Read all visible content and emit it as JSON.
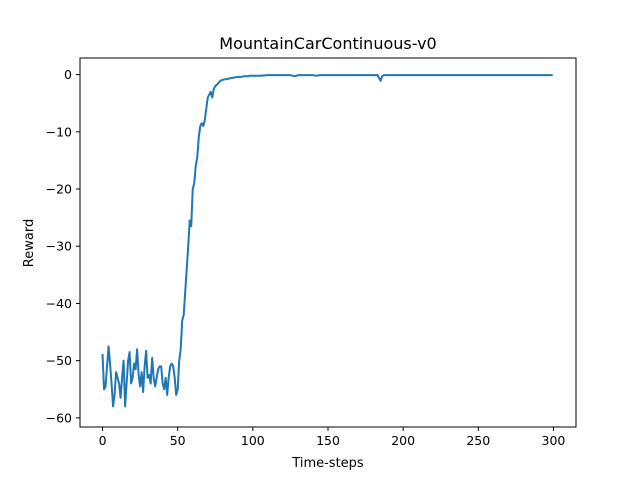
{
  "chart_data": {
    "type": "line",
    "title": "MountainCarContinuous-v0",
    "xlabel": "Time-steps",
    "ylabel": "Reward",
    "xlim": [
      -15,
      315
    ],
    "ylim": [
      -61.6,
      2.9
    ],
    "xticks": [
      0,
      50,
      100,
      150,
      200,
      250,
      300
    ],
    "yticks": [
      0,
      -10,
      -20,
      -30,
      -40,
      -50,
      -60
    ],
    "grid": false,
    "legend": "none",
    "series": [
      {
        "color": "#1f77b4",
        "x": [
          0,
          1,
          2,
          3,
          4,
          5,
          6,
          7,
          8,
          9,
          10,
          11,
          12,
          13,
          14,
          15,
          16,
          17,
          18,
          19,
          20,
          21,
          22,
          23,
          24,
          25,
          26,
          27,
          28,
          29,
          30,
          31,
          32,
          33,
          34,
          35,
          36,
          37,
          38,
          39,
          40,
          41,
          42,
          43,
          44,
          45,
          46,
          47,
          48,
          49,
          50,
          51,
          52,
          53,
          54,
          55,
          56,
          57,
          58,
          59,
          60,
          61,
          62,
          63,
          64,
          65,
          66,
          67,
          68,
          69,
          70,
          71,
          72,
          73,
          74,
          75,
          76,
          77,
          78,
          79,
          80,
          82,
          84,
          86,
          88,
          90,
          92,
          94,
          96,
          98,
          100,
          105,
          110,
          115,
          120,
          125,
          128,
          130,
          135,
          140,
          142,
          145,
          150,
          155,
          160,
          165,
          170,
          175,
          180,
          183,
          184,
          185,
          186,
          187,
          190,
          195,
          200,
          205,
          210,
          215,
          220,
          225,
          230,
          235,
          240,
          245,
          250,
          255,
          260,
          265,
          270,
          275,
          280,
          285,
          290,
          295,
          299
        ],
        "y": [
          -49,
          -55,
          -54.5,
          -51,
          -47.5,
          -50.5,
          -54,
          -58,
          -56,
          -52,
          -53,
          -54,
          -56.5,
          -53,
          -50,
          -58,
          -54,
          -50,
          -48.5,
          -54,
          -53,
          -50.5,
          -51.5,
          -48,
          -52.5,
          -54.5,
          -52,
          -55.5,
          -51,
          -48.3,
          -53,
          -52.5,
          -54,
          -49.5,
          -53,
          -54.5,
          -53,
          -51.5,
          -51,
          -51,
          -54,
          -55,
          -53,
          -56,
          -53,
          -51,
          -50.5,
          -51,
          -53,
          -56,
          -55,
          -50,
          -48,
          -43,
          -42,
          -38,
          -34,
          -30,
          -25.5,
          -26.5,
          -20,
          -19,
          -16,
          -14.5,
          -11,
          -9,
          -8.5,
          -9,
          -8,
          -6,
          -4,
          -3.5,
          -3,
          -4,
          -2.5,
          -2,
          -1.8,
          -1.5,
          -1.2,
          -1,
          -0.9,
          -0.8,
          -0.7,
          -0.6,
          -0.5,
          -0.4,
          -0.4,
          -0.3,
          -0.3,
          -0.2,
          -0.2,
          -0.2,
          -0.1,
          -0.1,
          -0.1,
          -0.1,
          -0.3,
          -0.1,
          -0.1,
          -0.1,
          -0.2,
          -0.1,
          -0.1,
          -0.1,
          -0.1,
          -0.1,
          -0.1,
          -0.1,
          -0.1,
          -0.1,
          -0.6,
          -1.1,
          -0.3,
          -0.1,
          -0.1,
          -0.1,
          -0.1,
          -0.1,
          -0.1,
          -0.1,
          -0.1,
          -0.1,
          -0.1,
          -0.1,
          -0.1,
          -0.1,
          -0.1,
          -0.1,
          -0.1,
          -0.1,
          -0.1,
          -0.1,
          -0.1,
          -0.1,
          -0.1,
          -0.1,
          -0.1
        ]
      }
    ]
  }
}
